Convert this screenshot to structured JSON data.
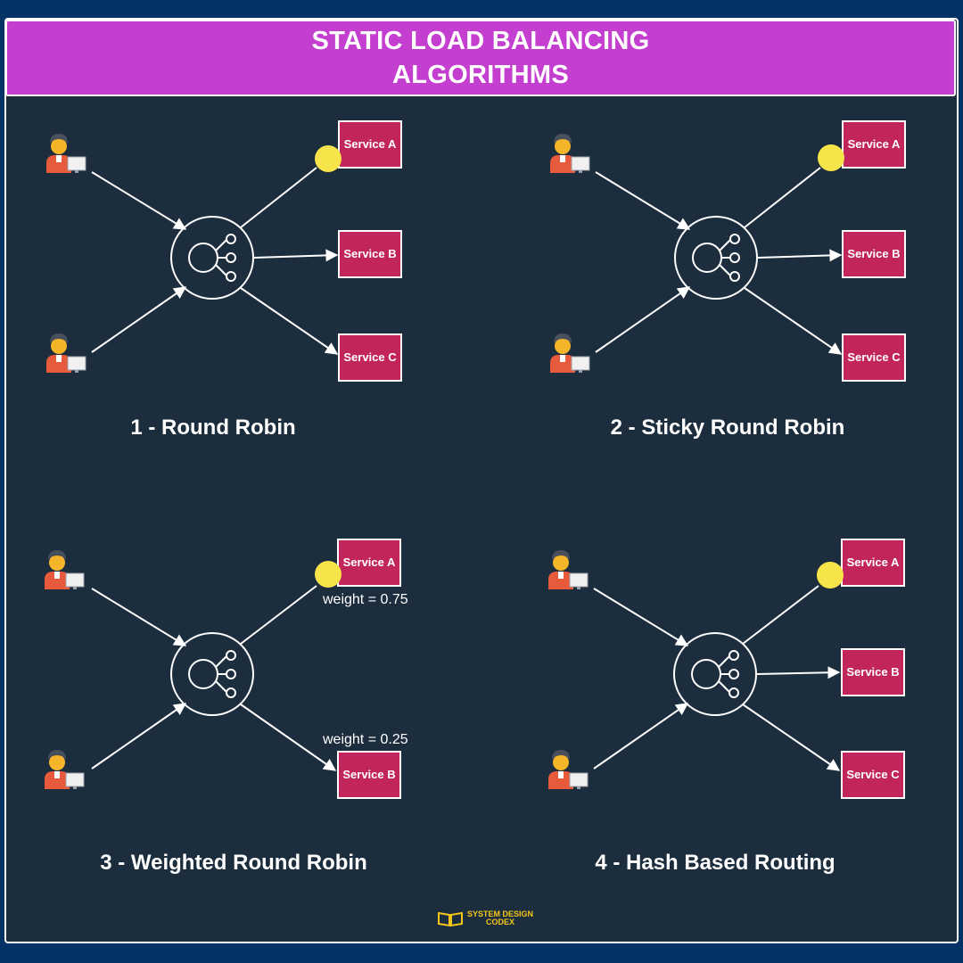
{
  "header": {
    "title_line1": "STATIC LOAD BALANCING",
    "title_line2": "ALGORITHMS"
  },
  "diagrams": [
    {
      "caption": "1 - Round Robin",
      "services": [
        "Service A",
        "Service B",
        "Service C"
      ]
    },
    {
      "caption": "2 - Sticky Round Robin",
      "services": [
        "Service A",
        "Service B",
        "Service C"
      ]
    },
    {
      "caption": "3 - Weighted Round Robin",
      "services": [
        "Service A",
        "Service B"
      ],
      "weights": [
        "weight = 0.75",
        "weight = 0.25"
      ]
    },
    {
      "caption": "4 - Hash Based Routing",
      "services": [
        "Service A",
        "Service B",
        "Service C"
      ]
    }
  ],
  "brand": {
    "line1": "SYSTEM DESIGN",
    "line2": "CODEX",
    "icon": "open-book-icon"
  },
  "colors": {
    "background": "#1c2d3d",
    "frame": "#063366",
    "banner": "#c43fcf",
    "service": "#c2255c",
    "highlight": "#f7e34a"
  }
}
